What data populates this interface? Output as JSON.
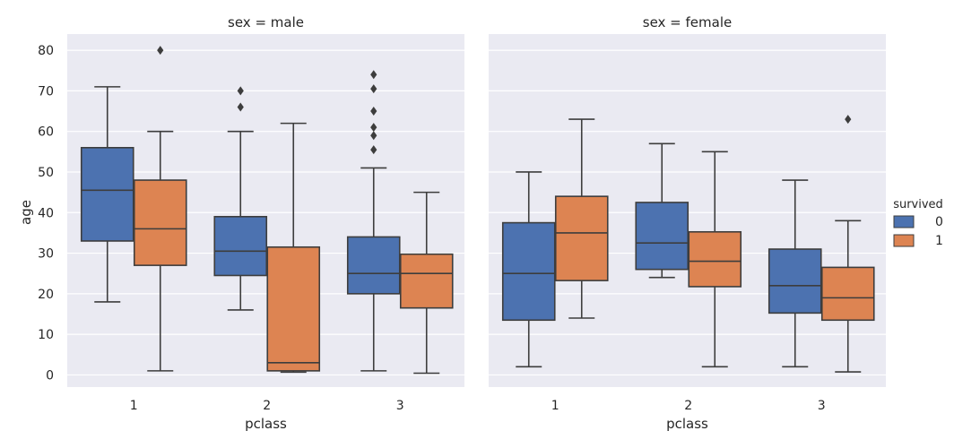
{
  "chart_data": {
    "type": "box",
    "legend_title": "survived",
    "legend": [
      {
        "label": "0",
        "color": "#4c72b0"
      },
      {
        "label": "1",
        "color": "#dd8452"
      }
    ],
    "ylabel": "age",
    "xlabel": "pclass",
    "yticks": [
      0,
      10,
      20,
      30,
      40,
      50,
      60,
      70,
      80
    ],
    "ylim": [
      -3,
      84
    ],
    "categories": [
      "1",
      "2",
      "3"
    ],
    "facets": [
      {
        "title": "sex = male",
        "groups": [
          {
            "category": "1",
            "boxes": [
              {
                "survived": "0",
                "lower_whisker": 18,
                "q1": 33,
                "median": 45.5,
                "q3": 56,
                "upper_whisker": 71,
                "outliers": []
              },
              {
                "survived": "1",
                "lower_whisker": 1,
                "q1": 27,
                "median": 36,
                "q3": 48,
                "upper_whisker": 60,
                "outliers": [
                  80
                ]
              }
            ]
          },
          {
            "category": "2",
            "boxes": [
              {
                "survived": "0",
                "lower_whisker": 16,
                "q1": 24.5,
                "median": 30.5,
                "q3": 39,
                "upper_whisker": 60,
                "outliers": [
                  66,
                  70
                ]
              },
              {
                "survived": "1",
                "lower_whisker": 0.67,
                "q1": 1,
                "median": 3,
                "q3": 31.5,
                "upper_whisker": 62,
                "outliers": []
              }
            ]
          },
          {
            "category": "3",
            "boxes": [
              {
                "survived": "0",
                "lower_whisker": 1,
                "q1": 20,
                "median": 25,
                "q3": 34,
                "upper_whisker": 51,
                "outliers": [
                  55.5,
                  59,
                  61,
                  65,
                  70.5,
                  74
                ]
              },
              {
                "survived": "1",
                "lower_whisker": 0.42,
                "q1": 16.5,
                "median": 25,
                "q3": 29.75,
                "upper_whisker": 45,
                "outliers": []
              }
            ]
          }
        ]
      },
      {
        "title": "sex = female",
        "groups": [
          {
            "category": "1",
            "boxes": [
              {
                "survived": "0",
                "lower_whisker": 2,
                "q1": 13.5,
                "median": 25,
                "q3": 37.5,
                "upper_whisker": 50,
                "outliers": []
              },
              {
                "survived": "1",
                "lower_whisker": 14,
                "q1": 23.25,
                "median": 35,
                "q3": 44,
                "upper_whisker": 63,
                "outliers": []
              }
            ]
          },
          {
            "category": "2",
            "boxes": [
              {
                "survived": "0",
                "lower_whisker": 24,
                "q1": 26,
                "median": 32.5,
                "q3": 42.5,
                "upper_whisker": 57,
                "outliers": []
              },
              {
                "survived": "1",
                "lower_whisker": 2,
                "q1": 21.75,
                "median": 28,
                "q3": 35.25,
                "upper_whisker": 55,
                "outliers": []
              }
            ]
          },
          {
            "category": "3",
            "boxes": [
              {
                "survived": "0",
                "lower_whisker": 2,
                "q1": 15.25,
                "median": 22,
                "q3": 31,
                "upper_whisker": 48,
                "outliers": []
              },
              {
                "survived": "1",
                "lower_whisker": 0.75,
                "q1": 13.5,
                "median": 19,
                "q3": 26.5,
                "upper_whisker": 38,
                "outliers": [
                  63
                ]
              }
            ]
          }
        ]
      }
    ]
  }
}
